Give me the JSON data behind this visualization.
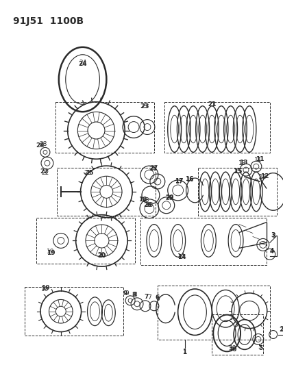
{
  "title": "91J51  1100B",
  "bg_color": "#ffffff",
  "line_color": "#2a2a2a",
  "title_fontsize": 10,
  "label_fontsize": 6.5,
  "fig_width": 4.14,
  "fig_height": 5.33,
  "dpi": 100
}
